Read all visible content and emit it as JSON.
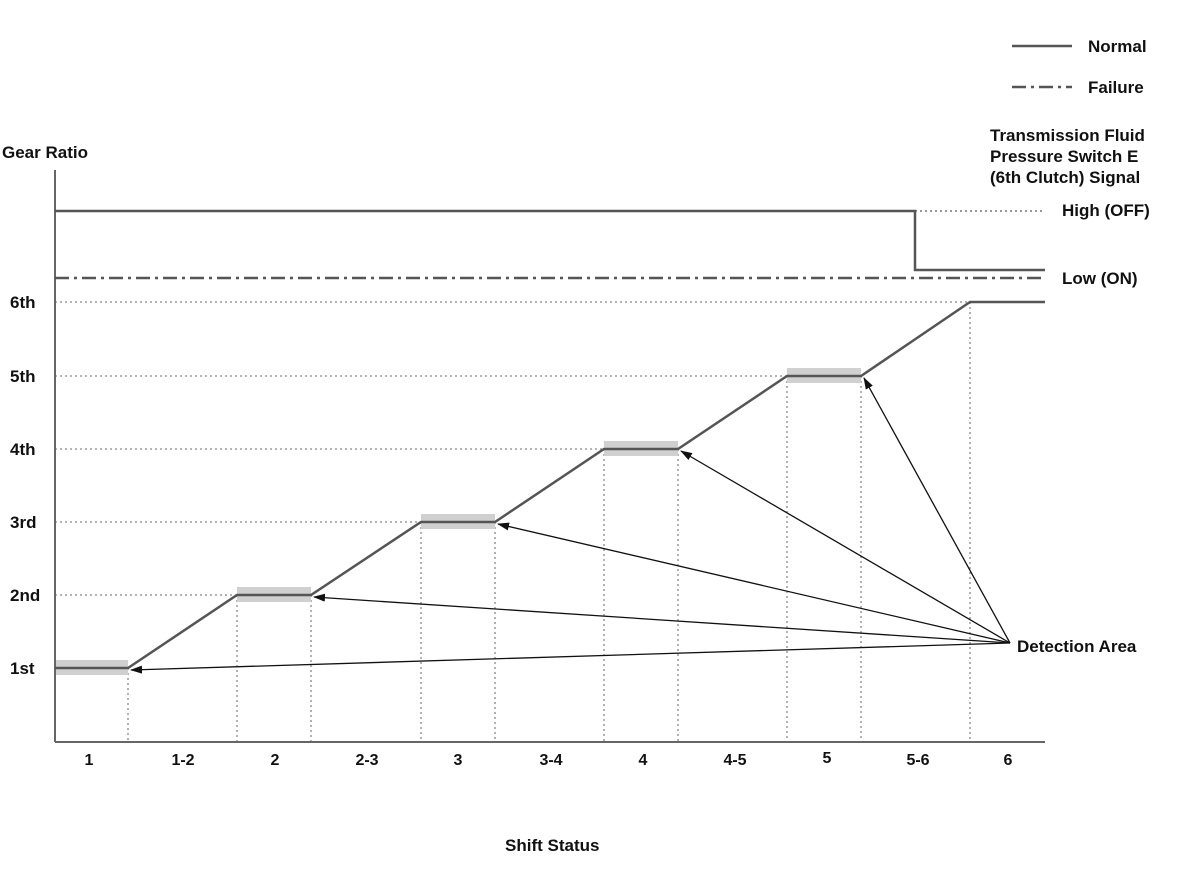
{
  "legend": {
    "normal_label": "Normal",
    "failure_label": "Failure"
  },
  "y_axis_label": "Gear Ratio",
  "x_axis_label": "Shift Status",
  "signal_label": [
    "Transmission Fluid",
    "Pressure Switch E",
    "(6th Clutch) Signal"
  ],
  "signal_levels": {
    "high": "High (OFF)",
    "low": "Low (ON)"
  },
  "gear_labels": [
    "1st",
    "2nd",
    "3rd",
    "4th",
    "5th",
    "6th"
  ],
  "shift_labels": [
    "1",
    "1-2",
    "2",
    "2-3",
    "3",
    "3-4",
    "4",
    "4-5",
    "5",
    "5-6",
    "6"
  ],
  "detection_label": "Detection Area",
  "colors": {
    "line": "#555555",
    "axis": "#666666",
    "guide": "#888888",
    "highlight": "#d0d0d0",
    "arrow": "#111111"
  }
}
